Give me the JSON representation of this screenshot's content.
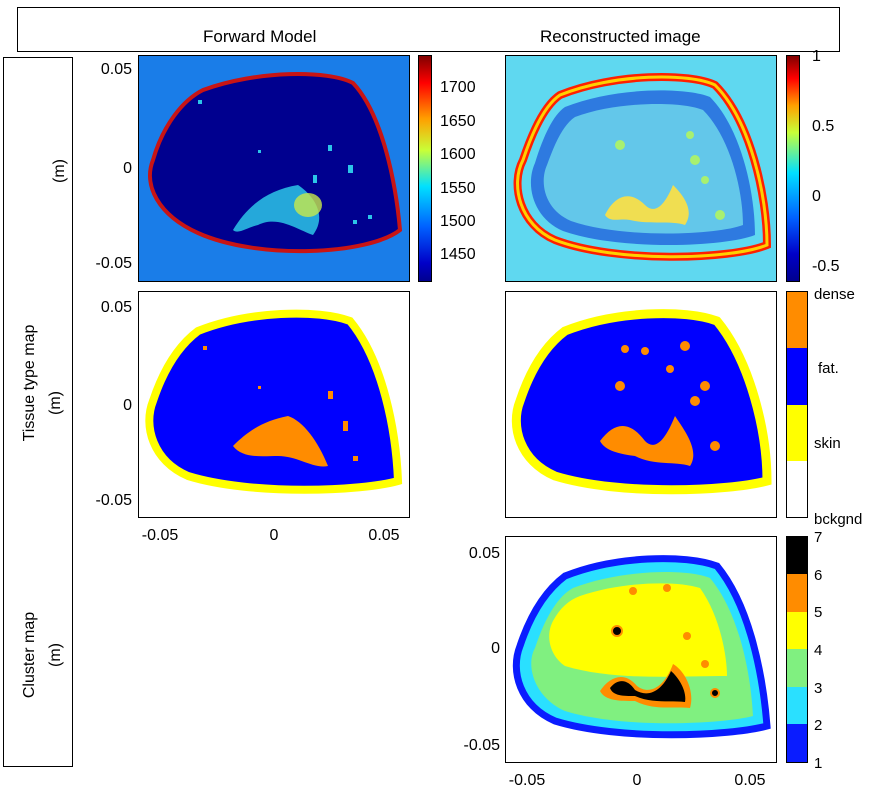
{
  "headers": {
    "col1": "Forward Model",
    "col2": "Reconstructed image"
  },
  "row_labels": {
    "row1_unit": "(m)",
    "row2_title": "Tissue type map",
    "row2_unit": "(m)",
    "row3_title": "Cluster map",
    "row3_unit": "(m)"
  },
  "colors": {
    "jet_dark": "#00008f",
    "jet_blue": "#0a2cd6",
    "jet_cyan": "#2cc5e8",
    "jet_light": "#5fd8f0",
    "skin_yellow": "#ffff00",
    "dense_orange": "#ff8c00",
    "fat_blue": "#0000ff",
    "red_edge": "#c81414"
  },
  "chart_data": [
    {
      "id": "forward-speed",
      "type": "heatmap",
      "title": "",
      "xlabel": "",
      "ylabel": "(m)",
      "yticks": [
        "0.05",
        "0",
        "-0.05"
      ],
      "xticks": [],
      "colorbar": {
        "ticks": [
          "1700",
          "1650",
          "1600",
          "1550",
          "1500",
          "1450"
        ],
        "range": [
          1420,
          1740
        ]
      }
    },
    {
      "id": "reconstructed-speed",
      "type": "heatmap",
      "title": "",
      "xlabel": "",
      "ylabel": "",
      "yticks": [],
      "xticks": [],
      "colorbar": {
        "ticks": [
          "1",
          "0.5",
          "0",
          "-0.5"
        ],
        "range": [
          -0.65,
          1.0
        ]
      }
    },
    {
      "id": "forward-tissue",
      "type": "heatmap",
      "title": "",
      "xlabel": "",
      "ylabel": "(m)",
      "yticks": [
        "0.05",
        "0",
        "-0.05"
      ],
      "xticks": [
        "-0.05",
        "0",
        "0.05"
      ],
      "colorbar": null
    },
    {
      "id": "reconstructed-tissue",
      "type": "heatmap",
      "title": "",
      "xlabel": "",
      "ylabel": "",
      "yticks": [],
      "xticks": [],
      "colorbar": {
        "categories": [
          "dense",
          "fat.",
          "skin",
          "bckgnd"
        ]
      }
    },
    {
      "id": "cluster",
      "type": "heatmap",
      "title": "",
      "xlabel": "",
      "ylabel": "(m)",
      "yticks": [
        "0.05",
        "0",
        "-0.05"
      ],
      "xticks": [
        "-0.05",
        "0",
        "0.05"
      ],
      "colorbar": {
        "ticks": [
          "7",
          "6",
          "5",
          "4",
          "3",
          "2",
          "1"
        ],
        "range": [
          1,
          7
        ]
      }
    }
  ]
}
